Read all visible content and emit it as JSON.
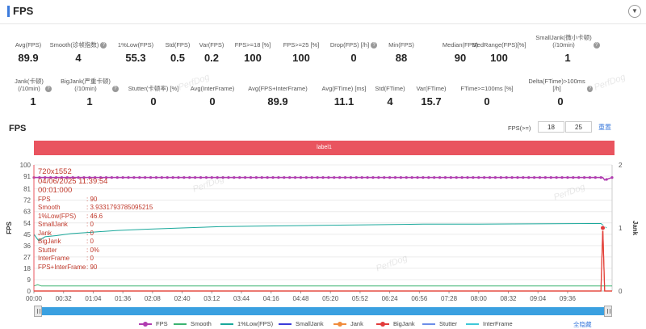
{
  "header": {
    "title": "FPS",
    "collapse_icon": "chevron-down-icon"
  },
  "stats_row1": [
    {
      "label": "Avg(FPS)",
      "value": "89.9",
      "help": false
    },
    {
      "label": "Smooth(诊帧指数)",
      "value": "4",
      "help": true
    },
    {
      "label": "1%Low(FPS)",
      "value": "55.3",
      "help": false
    },
    {
      "label": "Std(FPS)",
      "value": "0.5",
      "help": false
    },
    {
      "label": "Var(FPS)",
      "value": "0.2",
      "help": false
    },
    {
      "label": "FPS>=18 [%]",
      "value": "100",
      "help": false
    },
    {
      "label": "FPS>=25 [%]",
      "value": "100",
      "help": false
    },
    {
      "label": "Drop(FPS) [/h]",
      "value": "0",
      "help": true
    },
    {
      "label": "Min(FPS)",
      "value": "88",
      "help": false
    },
    {
      "label": "Median(FPS)",
      "value": "90",
      "help": false
    },
    {
      "label": "MedRange(FPS)[%]",
      "value": "100",
      "help": false
    },
    {
      "label": "SmallJank(微小卡顿)\n(/10min)",
      "value": "1",
      "help": true
    }
  ],
  "stats_row2": [
    {
      "label": "Jank(卡顿)\n(/10min)",
      "value": "1",
      "help": true
    },
    {
      "label": "BigJank(严重卡顿)\n(/10min)",
      "value": "1",
      "help": true
    },
    {
      "label": "Stutter(卡顿率) [%]",
      "value": "0",
      "help": false
    },
    {
      "label": "Avg(InterFrame)",
      "value": "0",
      "help": false
    },
    {
      "label": "Avg(FPS+InterFrame)",
      "value": "89.9",
      "help": false
    },
    {
      "label": "Avg(FTime) [ms]",
      "value": "11.1",
      "help": false
    },
    {
      "label": "Std(FTime)",
      "value": "4",
      "help": false
    },
    {
      "label": "Var(FTime)",
      "value": "15.7",
      "help": false
    },
    {
      "label": "FTime>=100ms [%]",
      "value": "0",
      "help": false
    },
    {
      "label": "Delta(FTime)>100ms [/h]",
      "value": "0",
      "help": true
    }
  ],
  "fps_section": {
    "title": "FPS",
    "threshold_label": "FPS(>=)",
    "threshold_1": "18",
    "threshold_2": "25",
    "reset_label": "重置",
    "label_bar": "label1",
    "watermark": "PerfDog"
  },
  "tooltip": {
    "resolution": "720x1552",
    "date": "04/06/2025 11:39:54",
    "time": "00:01:000",
    "rows": [
      {
        "k": "FPS",
        "v": ": 90"
      },
      {
        "k": "Smooth",
        "v": ": 3.9331793785095215"
      },
      {
        "k": "1%Low(FPS)",
        "v": ": 46.6"
      },
      {
        "k": "SmallJank",
        "v": ": 0"
      },
      {
        "k": "Jank",
        "v": ": 0"
      },
      {
        "k": "BigJank",
        "v": ": 0"
      },
      {
        "k": "Stutter",
        "v": ": 0%"
      },
      {
        "k": "InterFrame",
        "v": ": 0"
      },
      {
        "k": "FPS+InterFrame",
        "v": ": 90"
      }
    ]
  },
  "legend": {
    "items": [
      {
        "name": "FPS",
        "color": "#b03cb0",
        "marker": true
      },
      {
        "name": "Smooth",
        "color": "#3cb371",
        "marker": false
      },
      {
        "name": "1%Low(FPS)",
        "color": "#1aa89b",
        "marker": false
      },
      {
        "name": "SmallJank",
        "color": "#3b3bd9",
        "marker": false
      },
      {
        "name": "Jank",
        "color": "#f08c3c",
        "marker": true
      },
      {
        "name": "BigJank",
        "color": "#e23b3b",
        "marker": true
      },
      {
        "name": "Stutter",
        "color": "#6d8ee8",
        "marker": false
      },
      {
        "name": "InterFrame",
        "color": "#3fc8d8",
        "marker": false
      }
    ],
    "hide_all": "全隐藏"
  },
  "chart_data": {
    "type": "line",
    "ylabel": "FPS",
    "y2label": "Jank",
    "ylim": [
      0,
      100
    ],
    "y2lim": [
      0,
      2
    ],
    "yticks": [
      "100",
      "91",
      "81",
      "72",
      "63",
      "54",
      "45",
      "36",
      "27",
      "18",
      "9",
      "0"
    ],
    "y2ticks": [
      "2",
      "1",
      "0"
    ],
    "xticks": [
      "00:00",
      "00:32",
      "01:04",
      "01:36",
      "02:08",
      "02:40",
      "03:12",
      "03:44",
      "04:16",
      "04:48",
      "05:20",
      "05:52",
      "06:24",
      "06:56",
      "07:28",
      "08:00",
      "08:32",
      "09:04",
      "09:36"
    ],
    "xlim_seconds": [
      0,
      624
    ],
    "grid": true,
    "series": [
      {
        "name": "FPS",
        "x_seconds": [
          0,
          10,
          30,
          60,
          120,
          240,
          360,
          480,
          600,
          614,
          616,
          624
        ],
        "values": [
          90,
          90,
          90,
          90,
          90,
          90,
          90,
          90,
          90,
          90,
          88,
          90
        ]
      },
      {
        "name": "1%Low(FPS)",
        "x_seconds": [
          0,
          5,
          12,
          25,
          40,
          60,
          90,
          120,
          160,
          200,
          240,
          300,
          360,
          420,
          480,
          540,
          600,
          612,
          618
        ],
        "values": [
          45,
          40,
          43,
          44,
          45.5,
          46.5,
          48,
          49,
          50,
          51,
          51.5,
          52,
          52.5,
          53,
          53,
          53.3,
          53.5,
          53.5,
          50
        ]
      },
      {
        "name": "Smooth",
        "x_seconds": [
          0,
          4,
          8,
          20,
          100,
          200,
          300,
          400,
          500,
          600,
          624
        ],
        "values": [
          4,
          5,
          4,
          4,
          4,
          4,
          4,
          4,
          4,
          4,
          4
        ]
      },
      {
        "name": "Jank",
        "x_seconds": [
          0,
          612,
          614,
          616,
          624
        ],
        "values": [
          0,
          0,
          1,
          0,
          0
        ]
      },
      {
        "name": "BigJank",
        "x_seconds": [
          0,
          612,
          614,
          616,
          624
        ],
        "values": [
          0,
          0,
          1,
          0,
          0
        ]
      }
    ]
  }
}
